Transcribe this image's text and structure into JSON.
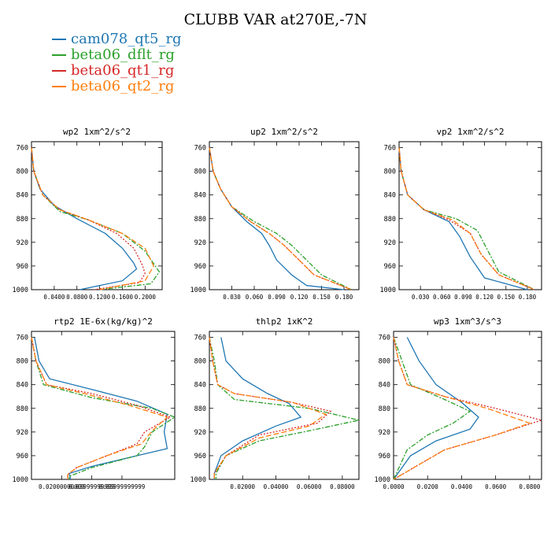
{
  "title": "CLUBB VAR at270E,-7N",
  "colors": {
    "cam078_qt5_rg": "#1f77b4",
    "beta06_dflt_rg": "#2ca02c",
    "beta06_qt1_rg": "#d62728",
    "beta06_qt2_rg": "#ff7f0e"
  },
  "legend": [
    {
      "name": "cam078_qt5_rg",
      "color": "#1f77b4"
    },
    {
      "name": "beta06_dflt_rg",
      "color": "#2ca02c"
    },
    {
      "name": "beta06_qt1_rg",
      "color": "#d62728"
    },
    {
      "name": "beta06_qt2_rg",
      "color": "#ff7f0e"
    }
  ],
  "chart_data": [
    {
      "type": "line",
      "title": "wp2  1xm^2/s^2",
      "ylim": [
        1000,
        750
      ],
      "xlim": [
        0,
        0.23
      ],
      "yticks": [
        760,
        800,
        840,
        880,
        920,
        960,
        1000
      ],
      "xticks": [
        0.04,
        0.08,
        0.12,
        0.16,
        0.2
      ],
      "xticklabels": [
        "0.0400",
        "0.0800",
        "0.1200",
        "0.1600",
        "0.2000"
      ],
      "series": [
        {
          "name": "cam078_qt5_rg",
          "dash": "",
          "x": [
            0,
            0.004,
            0.015,
            0.04,
            0.08,
            0.13,
            0.16,
            0.18,
            0.185,
            0.16,
            0.085
          ],
          "y": [
            760,
            800,
            830,
            858,
            880,
            905,
            930,
            955,
            965,
            985,
            1000
          ]
        },
        {
          "name": "beta06_dflt_rg",
          "dash": "6 2 2 2",
          "x": [
            0,
            0.004,
            0.02,
            0.05,
            0.1,
            0.16,
            0.2,
            0.225,
            0.21,
            0.12
          ],
          "y": [
            760,
            800,
            840,
            868,
            882,
            905,
            935,
            970,
            990,
            1000
          ]
        },
        {
          "name": "beta06_qt1_rg",
          "dash": "2 2",
          "x": [
            0,
            0.004,
            0.02,
            0.05,
            0.1,
            0.15,
            0.18,
            0.195,
            0.2,
            0.19,
            0.11
          ],
          "y": [
            760,
            800,
            840,
            865,
            882,
            905,
            930,
            958,
            973,
            988,
            1000
          ]
        },
        {
          "name": "beta06_qt2_rg",
          "dash": "7 3",
          "x": [
            0,
            0.004,
            0.02,
            0.05,
            0.1,
            0.16,
            0.2,
            0.215,
            0.2,
            0.12
          ],
          "y": [
            760,
            800,
            840,
            865,
            882,
            905,
            930,
            960,
            985,
            1000
          ]
        }
      ]
    },
    {
      "type": "line",
      "title": "up2  1xm^2/s^2",
      "ylim": [
        1000,
        750
      ],
      "xlim": [
        0,
        0.2
      ],
      "yticks": [
        760,
        800,
        840,
        880,
        920,
        960,
        1000
      ],
      "xticks": [
        0.03,
        0.06,
        0.09,
        0.12,
        0.15,
        0.18
      ],
      "xticklabels": [
        "0.030",
        "0.060",
        "0.090",
        "0.120",
        "0.150",
        "0.180"
      ],
      "series": [
        {
          "name": "cam078_qt5_rg",
          "dash": "",
          "x": [
            0,
            0.005,
            0.015,
            0.03,
            0.05,
            0.07,
            0.08,
            0.09,
            0.11,
            0.13,
            0.18
          ],
          "y": [
            760,
            800,
            830,
            860,
            885,
            905,
            925,
            950,
            975,
            993,
            1000
          ]
        },
        {
          "name": "beta06_dflt_rg",
          "dash": "6 2 2 2",
          "x": [
            0,
            0.005,
            0.015,
            0.03,
            0.06,
            0.09,
            0.11,
            0.13,
            0.15,
            0.19
          ],
          "y": [
            760,
            800,
            830,
            860,
            885,
            905,
            925,
            950,
            975,
            1000
          ]
        },
        {
          "name": "beta06_qt1_rg",
          "dash": "2 2",
          "x": [
            0,
            0.005,
            0.015,
            0.03,
            0.055,
            0.08,
            0.1,
            0.12,
            0.14,
            0.19
          ],
          "y": [
            760,
            800,
            830,
            860,
            885,
            905,
            925,
            950,
            975,
            1000
          ]
        },
        {
          "name": "beta06_qt2_rg",
          "dash": "7 3",
          "x": [
            0,
            0.005,
            0.015,
            0.03,
            0.055,
            0.08,
            0.1,
            0.12,
            0.14,
            0.19
          ],
          "y": [
            760,
            800,
            830,
            860,
            885,
            905,
            925,
            950,
            975,
            1000
          ]
        }
      ]
    },
    {
      "type": "line",
      "title": "vp2  1xm^2/s^2",
      "ylim": [
        1000,
        750
      ],
      "xlim": [
        0,
        0.2
      ],
      "yticks": [
        760,
        800,
        840,
        880,
        920,
        960,
        1000
      ],
      "xticks": [
        0.03,
        0.06,
        0.09,
        0.12,
        0.15,
        0.18
      ],
      "xticklabels": [
        "0.030",
        "0.060",
        "0.090",
        "0.120",
        "0.150",
        "0.180"
      ],
      "series": [
        {
          "name": "cam078_qt5_rg",
          "dash": "",
          "x": [
            0,
            0.003,
            0.012,
            0.035,
            0.07,
            0.085,
            0.1,
            0.12,
            0.18
          ],
          "y": [
            760,
            800,
            840,
            865,
            885,
            910,
            945,
            980,
            1000
          ]
        },
        {
          "name": "beta06_dflt_rg",
          "dash": "6 2 2 2",
          "x": [
            0,
            0.003,
            0.012,
            0.035,
            0.08,
            0.11,
            0.125,
            0.14,
            0.19
          ],
          "y": [
            760,
            800,
            840,
            865,
            880,
            900,
            935,
            970,
            1000
          ]
        },
        {
          "name": "beta06_qt1_rg",
          "dash": "2 2",
          "x": [
            0,
            0.003,
            0.012,
            0.035,
            0.07,
            0.1,
            0.115,
            0.14,
            0.19
          ],
          "y": [
            760,
            800,
            840,
            865,
            882,
            905,
            940,
            975,
            1000
          ]
        },
        {
          "name": "beta06_qt2_rg",
          "dash": "7 3",
          "x": [
            0,
            0.003,
            0.012,
            0.035,
            0.075,
            0.1,
            0.115,
            0.14,
            0.19
          ],
          "y": [
            760,
            800,
            840,
            865,
            882,
            905,
            940,
            975,
            1000
          ]
        }
      ]
    },
    {
      "type": "line",
      "title": "rtp2  1E-6x(kg/kg)^2",
      "ylim": [
        1000,
        750
      ],
      "xlim": [
        0,
        0.095
      ],
      "yticks": [
        760,
        800,
        840,
        880,
        920,
        960,
        1000
      ],
      "xticks": [
        0.02,
        0.04,
        0.06
      ],
      "xticklabels": [
        "0.02000000000",
        "0.03999999999",
        "0.05999999999"
      ],
      "series": [
        {
          "name": "cam078_qt5_rg",
          "dash": "",
          "x": [
            0.002,
            0.005,
            0.012,
            0.04,
            0.07,
            0.09,
            0.088,
            0.09,
            0.07,
            0.04,
            0.025,
            0.026
          ],
          "y": [
            760,
            800,
            830,
            848,
            868,
            890,
            920,
            948,
            960,
            978,
            990,
            1000
          ]
        },
        {
          "name": "beta06_dflt_rg",
          "dash": "6 2 2 2",
          "x": [
            0.0,
            0.003,
            0.008,
            0.04,
            0.08,
            0.095,
            0.08,
            0.075,
            0.07,
            0.04,
            0.025,
            0.025
          ],
          "y": [
            760,
            800,
            840,
            862,
            880,
            895,
            920,
            945,
            960,
            980,
            995,
            1000
          ]
        },
        {
          "name": "beta06_qt1_rg",
          "dash": "2 2",
          "x": [
            0.0,
            0.003,
            0.01,
            0.04,
            0.07,
            0.092,
            0.075,
            0.07,
            0.05,
            0.03,
            0.024,
            0.024
          ],
          "y": [
            760,
            800,
            840,
            855,
            875,
            895,
            920,
            940,
            960,
            980,
            992,
            1000
          ]
        },
        {
          "name": "beta06_qt2_rg",
          "dash": "7 3",
          "x": [
            0.0,
            0.003,
            0.01,
            0.035,
            0.065,
            0.09,
            0.08,
            0.073,
            0.05,
            0.03,
            0.024,
            0.024
          ],
          "y": [
            760,
            800,
            840,
            855,
            875,
            895,
            918,
            940,
            960,
            980,
            992,
            1000
          ]
        }
      ]
    },
    {
      "type": "line",
      "title": "thlp2  1xK^2",
      "ylim": [
        1000,
        750
      ],
      "xlim": [
        0,
        0.09
      ],
      "yticks": [
        760,
        800,
        840,
        880,
        920,
        960,
        1000
      ],
      "xticks": [
        0.02,
        0.04,
        0.06,
        0.08
      ],
      "xticklabels": [
        "0.02000",
        "0.04000",
        "0.06000",
        "0.08000"
      ],
      "series": [
        {
          "name": "cam078_qt5_rg",
          "dash": "",
          "x": [
            0.007,
            0.01,
            0.02,
            0.035,
            0.048,
            0.055,
            0.04,
            0.02,
            0.007,
            0.003,
            0.003
          ],
          "y": [
            760,
            800,
            830,
            855,
            872,
            895,
            910,
            935,
            960,
            990,
            1000
          ]
        },
        {
          "name": "beta06_dflt_rg",
          "dash": "6 2 2 2",
          "x": [
            0.0,
            0.003,
            0.005,
            0.015,
            0.06,
            0.09,
            0.06,
            0.03,
            0.01,
            0.004,
            0.004
          ],
          "y": [
            760,
            800,
            840,
            865,
            880,
            900,
            918,
            935,
            960,
            990,
            1000
          ]
        },
        {
          "name": "beta06_qt1_rg",
          "dash": "2 2",
          "x": [
            0.0,
            0.002,
            0.005,
            0.015,
            0.05,
            0.073,
            0.065,
            0.03,
            0.01,
            0.003,
            0.003
          ],
          "y": [
            760,
            800,
            840,
            855,
            870,
            885,
            905,
            925,
            960,
            990,
            1000
          ]
        },
        {
          "name": "beta06_qt2_rg",
          "dash": "7 3",
          "x": [
            0.0,
            0.002,
            0.005,
            0.015,
            0.05,
            0.07,
            0.06,
            0.03,
            0.01,
            0.003,
            0.003
          ],
          "y": [
            760,
            800,
            840,
            855,
            870,
            890,
            910,
            930,
            960,
            990,
            1000
          ]
        }
      ]
    },
    {
      "type": "line",
      "title": "wp3  1xm^3/s^3",
      "ylim": [
        1000,
        750
      ],
      "xlim": [
        0,
        0.087
      ],
      "yticks": [
        760,
        800,
        840,
        880,
        920,
        960,
        1000
      ],
      "xticks": [
        0,
        0.02,
        0.04,
        0.06,
        0.08
      ],
      "xticklabels": [
        "0.0000",
        "0.0200",
        "0.0400",
        "0.0600",
        "0.0800"
      ],
      "series": [
        {
          "name": "cam078_qt5_rg",
          "dash": "",
          "x": [
            0.008,
            0.015,
            0.025,
            0.04,
            0.05,
            0.045,
            0.025,
            0.01,
            0.0
          ],
          "y": [
            760,
            800,
            840,
            870,
            895,
            915,
            935,
            960,
            1000
          ]
        },
        {
          "name": "beta06_dflt_rg",
          "dash": "6 2 2 2",
          "x": [
            0.0,
            0.005,
            0.01,
            0.03,
            0.045,
            0.035,
            0.02,
            0.008,
            0.0
          ],
          "y": [
            760,
            800,
            840,
            865,
            885,
            905,
            925,
            950,
            1000
          ]
        },
        {
          "name": "beta06_qt1_rg",
          "dash": "2 2",
          "x": [
            0.0,
            0.003,
            0.008,
            0.03,
            0.06,
            0.087,
            0.06,
            0.03,
            0.0
          ],
          "y": [
            760,
            800,
            840,
            860,
            880,
            900,
            925,
            950,
            1000
          ]
        },
        {
          "name": "beta06_qt2_rg",
          "dash": "7 3",
          "x": [
            0.0,
            0.003,
            0.008,
            0.03,
            0.055,
            0.08,
            0.06,
            0.03,
            0.0
          ],
          "y": [
            760,
            800,
            840,
            860,
            880,
            905,
            925,
            950,
            1000
          ]
        }
      ]
    }
  ]
}
